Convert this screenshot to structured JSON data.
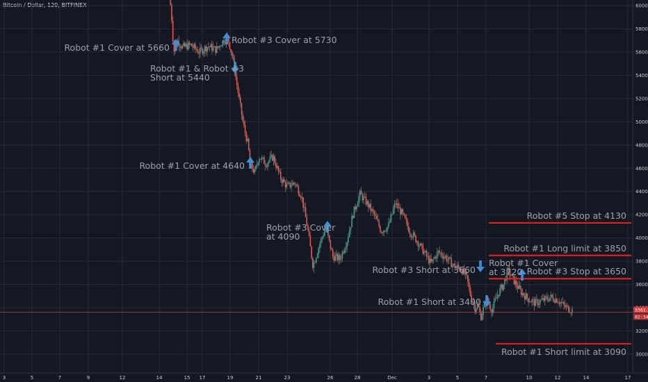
{
  "title": "Bitcoin / Dollar, 120, BITFINEX",
  "colors": {
    "background": "#141823",
    "grid": "#232a37",
    "up": "#26a69a",
    "down": "#ef5350",
    "wick": "#8a7368",
    "level": "#e01e1e",
    "arrow": "#3d8fd8",
    "annotation": "#9aa2ab",
    "current": "#c43a3a"
  },
  "price_badges": [
    "3361.5",
    "02:34"
  ],
  "chart_data": {
    "type": "candlestick",
    "title": "Bitcoin / Dollar, 120, BITFINEX",
    "ylim": [
      2950,
      6100
    ],
    "y_ticks": [
      "6000.0",
      "5800.0",
      "5600.0",
      "5400.0",
      "5200.0",
      "5000.0",
      "4800.0",
      "4600.0",
      "4400.0",
      "4200.0",
      "4000.0",
      "3800.0",
      "3600.0",
      "3400.0",
      "3200.0",
      "3000.0"
    ],
    "x_ticks": [
      "3",
      "5",
      "7",
      "9",
      "12",
      "14",
      "15",
      "17",
      "19",
      "21",
      "23",
      "26",
      "28",
      "Dec",
      "3",
      "5",
      "7",
      "10",
      "12",
      "14",
      "17"
    ],
    "current_price": 3361.5,
    "price_path": [
      [
        14.7,
        6120
      ],
      [
        14.9,
        5840
      ],
      [
        15.0,
        5600
      ],
      [
        15.3,
        5700
      ],
      [
        15.6,
        5640
      ],
      [
        16.2,
        5660
      ],
      [
        16.8,
        5600
      ],
      [
        17.4,
        5650
      ],
      [
        18.0,
        5620
      ],
      [
        18.5,
        5700
      ],
      [
        18.8,
        5730
      ],
      [
        19.1,
        5580
      ],
      [
        19.3,
        5440
      ],
      [
        19.6,
        5200
      ],
      [
        19.9,
        4980
      ],
      [
        20.2,
        4820
      ],
      [
        20.4,
        4640
      ],
      [
        20.7,
        4560
      ],
      [
        21.0,
        4700
      ],
      [
        21.5,
        4640
      ],
      [
        22.0,
        4700
      ],
      [
        22.5,
        4520
      ],
      [
        23.0,
        4440
      ],
      [
        23.5,
        4480
      ],
      [
        24.0,
        4360
      ],
      [
        24.4,
        4100
      ],
      [
        24.8,
        3760
      ],
      [
        25.3,
        3960
      ],
      [
        25.7,
        4090
      ],
      [
        26.2,
        3840
      ],
      [
        26.7,
        3820
      ],
      [
        27.2,
        3980
      ],
      [
        27.6,
        4200
      ],
      [
        28.1,
        4380
      ],
      [
        28.6,
        4300
      ],
      [
        29.1,
        4200
      ],
      [
        29.6,
        4060
      ],
      [
        30.1,
        4100
      ],
      [
        30.6,
        4300
      ],
      [
        31.1,
        4200
      ],
      [
        31.6,
        4060
      ],
      [
        32.1,
        3980
      ],
      [
        32.6,
        3880
      ],
      [
        33.1,
        3780
      ],
      [
        33.6,
        3880
      ],
      [
        34.1,
        3840
      ],
      [
        34.7,
        3760
      ],
      [
        35.2,
        3740
      ],
      [
        35.6,
        3660
      ],
      [
        35.9,
        3500
      ],
      [
        36.2,
        3400
      ],
      [
        36.4,
        3420
      ],
      [
        36.6,
        3320
      ],
      [
        37.0,
        3470
      ],
      [
        37.4,
        3380
      ],
      [
        37.8,
        3520
      ],
      [
        38.2,
        3600
      ],
      [
        38.5,
        3720
      ],
      [
        38.9,
        3640
      ],
      [
        39.4,
        3540
      ],
      [
        39.9,
        3480
      ],
      [
        40.4,
        3440
      ],
      [
        40.9,
        3460
      ],
      [
        41.5,
        3490
      ],
      [
        42.0,
        3470
      ],
      [
        42.5,
        3410
      ],
      [
        43.0,
        3380
      ]
    ],
    "annotations": [
      {
        "text": "Robot #1 Cover at 5660",
        "arrow": "up",
        "day": 15.1,
        "price": 5660
      },
      {
        "text": "Robot #3 Cover at 5730",
        "arrow": "up",
        "day": 18.8,
        "price": 5730
      },
      {
        "text": "Robot #1 & Robot #3",
        "text2": "Short at 5440",
        "arrow": "down",
        "day": 19.3,
        "price": 5440
      },
      {
        "text": "Robot #1 Cover at 4640",
        "arrow": "up",
        "day": 20.4,
        "price": 4640
      },
      {
        "text": "Robot #3 Cover",
        "text2": "at 4090",
        "arrow": "up",
        "day": 25.7,
        "price": 4090
      },
      {
        "text": "Robot #3 Short at 3660",
        "arrow": "down",
        "day": 35.6,
        "price": 3660
      },
      {
        "text": "Robot #1 Cover",
        "text2": "at 3720",
        "arrow": "up",
        "day": 38.5,
        "price": 3720
      },
      {
        "text": "Robot #1 Short at 3400",
        "arrow": "down",
        "day": 36.2,
        "price": 3400
      }
    ],
    "levels": [
      {
        "label": "Robot #5 Stop at 4130",
        "price": 4130
      },
      {
        "label": "Robot #1 Long limit at 3850",
        "price": 3850
      },
      {
        "label": "Robot #3 Stop at 3650",
        "price": 3650
      },
      {
        "label": "Robot #1 Short limit at 3090",
        "price": 3090
      }
    ]
  }
}
